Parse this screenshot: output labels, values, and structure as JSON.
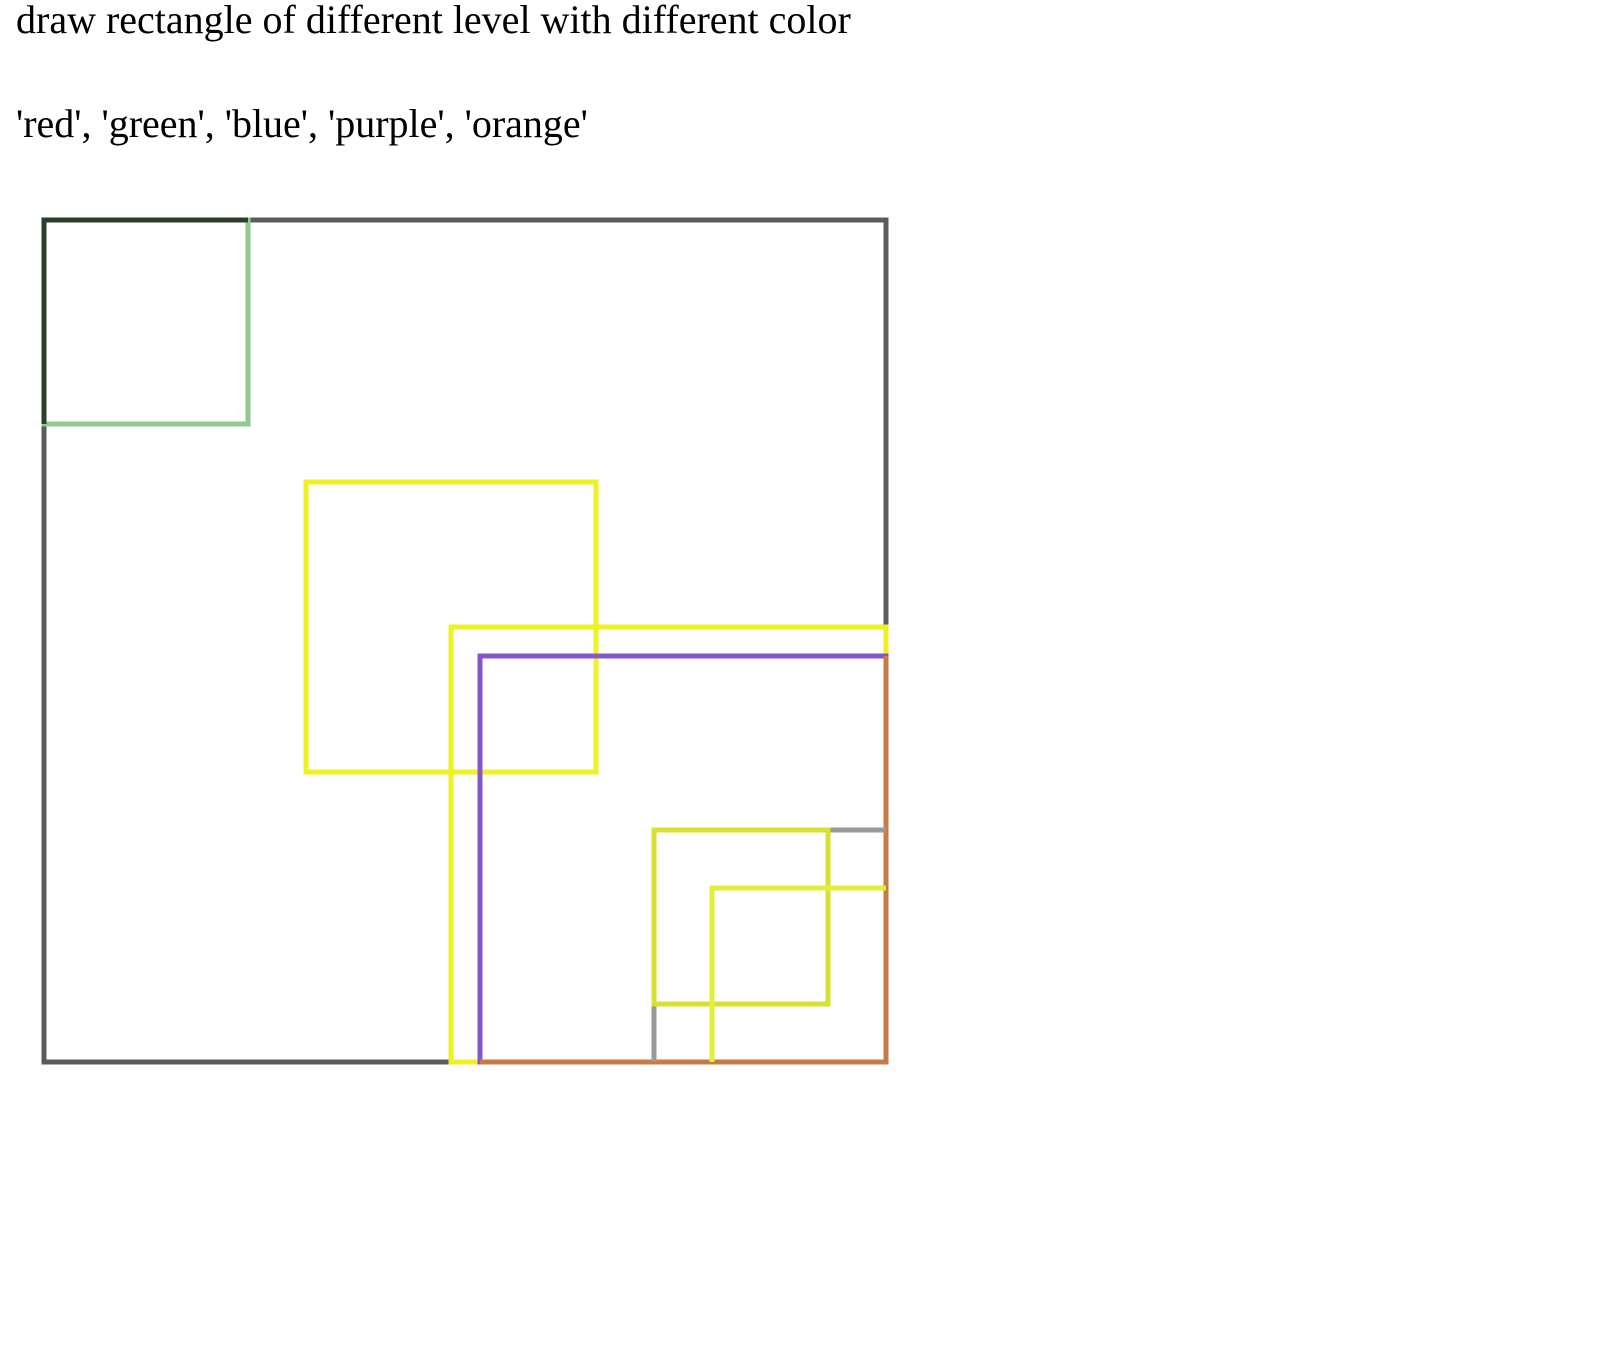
{
  "page": {
    "title": "draw rectangle of different level with different color",
    "color_list": "'red', 'green', 'blue', 'purple', 'orange'"
  },
  "rectangles": [
    {
      "name": "level-0-rectangle",
      "color": "#5b5b5b"
    },
    {
      "name": "level-1-rectangle-top-left",
      "color": "#8fc98f"
    },
    {
      "name": "level-1-rectangle-center",
      "color": "#eef220"
    },
    {
      "name": "level-1-rectangle-bottom-right-outer",
      "color": "#eef220"
    },
    {
      "name": "level-2-rectangle-bottom-right",
      "color": "#8a55c8"
    },
    {
      "name": "level-2-rectangle-orange-edges",
      "color": "#c87a46"
    },
    {
      "name": "level-3-rectangle-gray",
      "color": "#9a9a9a"
    },
    {
      "name": "level-3-rectangle-yellow",
      "color": "#d8e030"
    },
    {
      "name": "level-4-rectangle-yellow",
      "color": "#e2ee3a"
    }
  ]
}
